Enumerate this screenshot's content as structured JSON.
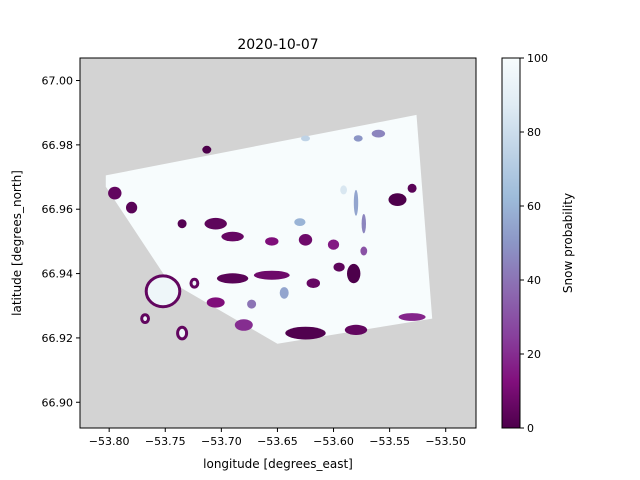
{
  "chart_data": {
    "type": "heatmap",
    "title": "2020-10-07",
    "xlabel": "longitude [degrees_east]",
    "ylabel": "latitude [degrees_north]",
    "xlim": [
      -53.826,
      -53.473
    ],
    "ylim": [
      66.892,
      67.007
    ],
    "xticks": [
      -53.8,
      -53.75,
      -53.7,
      -53.65,
      -53.6,
      -53.55,
      -53.5
    ],
    "xtick_labels": [
      "−53.80",
      "−53.75",
      "−53.70",
      "−53.65",
      "−53.60",
      "−53.55",
      "−53.50"
    ],
    "yticks": [
      66.9,
      66.92,
      66.94,
      66.96,
      66.98,
      67.0
    ],
    "ytick_labels": [
      "66.90",
      "66.92",
      "66.94",
      "66.96",
      "66.98",
      "67.00"
    ],
    "colorbar": {
      "label": "Snow probability",
      "range": [
        0,
        100
      ],
      "ticks": [
        0,
        20,
        40,
        60,
        80,
        100
      ],
      "tick_labels": [
        "0",
        "20",
        "40",
        "60",
        "80",
        "100"
      ],
      "colormap": "BuPu_r",
      "stops": [
        "#4d004b",
        "#810f7c",
        "#88419d",
        "#8c6bb1",
        "#8c96c6",
        "#9ebcda",
        "#bfd3e6",
        "#e0ecf4",
        "#f7fcfd"
      ]
    },
    "nodata_color": "#d3d3d3",
    "scene_footprint": [
      [
        -53.803,
        66.9705
      ],
      [
        -53.526,
        66.9893
      ],
      [
        -53.512,
        66.926
      ],
      [
        -53.65,
        66.9182
      ],
      [
        -53.748,
        66.938
      ],
      [
        -53.803,
        66.967
      ]
    ],
    "low_snow_patches": [
      [
        -53.713,
        66.9785,
        0.004,
        0.0012,
        0
      ],
      [
        -53.795,
        66.965,
        0.006,
        0.002,
        5
      ],
      [
        -53.78,
        66.9605,
        0.005,
        0.0018,
        3
      ],
      [
        -53.705,
        66.9555,
        0.01,
        0.0018,
        4
      ],
      [
        -53.735,
        66.9555,
        0.004,
        0.0014,
        2
      ],
      [
        -53.69,
        66.9515,
        0.01,
        0.0015,
        6
      ],
      [
        -53.655,
        66.95,
        0.006,
        0.0013,
        12
      ],
      [
        -53.625,
        66.9505,
        0.006,
        0.0018,
        8
      ],
      [
        -53.6,
        66.949,
        0.005,
        0.0016,
        15
      ],
      [
        -53.573,
        66.947,
        0.003,
        0.0014,
        30
      ],
      [
        -53.543,
        66.963,
        0.008,
        0.002,
        0
      ],
      [
        -53.53,
        66.9665,
        0.004,
        0.0014,
        3
      ],
      [
        -53.582,
        66.94,
        0.006,
        0.003,
        0
      ],
      [
        -53.595,
        66.942,
        0.005,
        0.0014,
        4
      ],
      [
        -53.69,
        66.9385,
        0.014,
        0.0016,
        3
      ],
      [
        -53.655,
        66.9395,
        0.016,
        0.0014,
        8
      ],
      [
        -53.618,
        66.937,
        0.006,
        0.0015,
        6
      ],
      [
        -53.705,
        66.931,
        0.008,
        0.0016,
        12
      ],
      [
        -53.68,
        66.924,
        0.008,
        0.0018,
        20
      ],
      [
        -53.625,
        66.9215,
        0.018,
        0.002,
        1
      ],
      [
        -53.58,
        66.9225,
        0.01,
        0.0016,
        5
      ],
      [
        -53.53,
        66.9265,
        0.012,
        0.0012,
        18
      ],
      [
        -53.644,
        66.934,
        0.004,
        0.0018,
        55
      ],
      [
        -53.673,
        66.9305,
        0.004,
        0.0014,
        40
      ],
      [
        -53.63,
        66.956,
        0.005,
        0.0012,
        60
      ],
      [
        -53.58,
        66.962,
        0.002,
        0.004,
        55
      ],
      [
        -53.573,
        66.9555,
        0.002,
        0.003,
        45
      ],
      [
        -53.56,
        66.9835,
        0.006,
        0.0012,
        45
      ],
      [
        -53.578,
        66.982,
        0.004,
        0.001,
        50
      ],
      [
        -53.625,
        66.982,
        0.004,
        0.0009,
        75
      ],
      [
        -53.591,
        66.966,
        0.003,
        0.0014,
        85
      ]
    ],
    "islands": [
      [
        -53.752,
        66.9345,
        0.015,
        0.0048
      ],
      [
        -53.735,
        66.9215,
        0.004,
        0.0018
      ],
      [
        -53.768,
        66.926,
        0.003,
        0.0012
      ],
      [
        -53.724,
        66.937,
        0.003,
        0.0012
      ]
    ]
  }
}
